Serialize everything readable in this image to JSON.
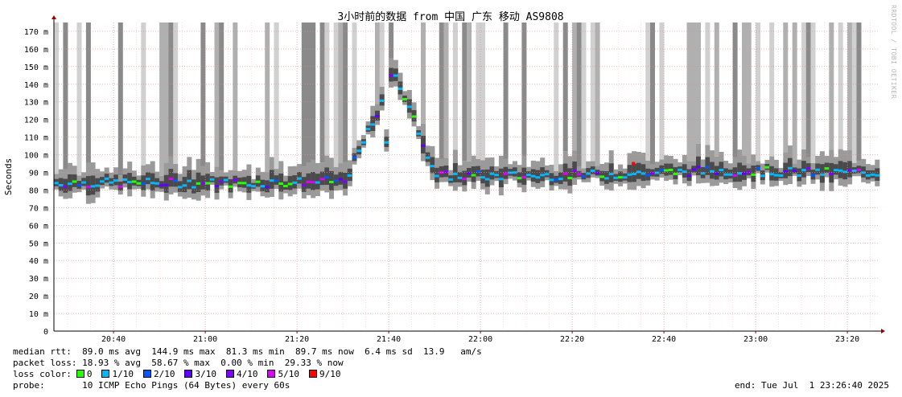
{
  "watermark": "RRDTOOL / TOBI OETIKER",
  "chart_data": {
    "type": "area",
    "title": "3小时前的数据 from 中国 广东 移动 AS9808",
    "ylabel": "Seconds",
    "xlabel": "",
    "ylim": [
      0,
      0.175
    ],
    "yticks": [
      {
        "v": 0,
        "label": "0"
      },
      {
        "v": 0.01,
        "label": "10 m"
      },
      {
        "v": 0.02,
        "label": "20 m"
      },
      {
        "v": 0.03,
        "label": "30 m"
      },
      {
        "v": 0.04,
        "label": "40 m"
      },
      {
        "v": 0.05,
        "label": "50 m"
      },
      {
        "v": 0.06,
        "label": "60 m"
      },
      {
        "v": 0.07,
        "label": "70 m"
      },
      {
        "v": 0.08,
        "label": "80 m"
      },
      {
        "v": 0.09,
        "label": "90 m"
      },
      {
        "v": 0.1,
        "label": "100 m"
      },
      {
        "v": 0.11,
        "label": "110 m"
      },
      {
        "v": 0.12,
        "label": "120 m"
      },
      {
        "v": 0.13,
        "label": "130 m"
      },
      {
        "v": 0.14,
        "label": "140 m"
      },
      {
        "v": 0.15,
        "label": "150 m"
      },
      {
        "v": 0.16,
        "label": "160 m"
      },
      {
        "v": 0.17,
        "label": "170 m"
      }
    ],
    "xticks": [
      "20:40",
      "21:00",
      "21:20",
      "21:40",
      "22:00",
      "22:20",
      "22:40",
      "23:00",
      "23:20"
    ],
    "grid": true,
    "series": [
      {
        "name": "median rtt",
        "unit": "ms",
        "x": [
          "20:27",
          "20:50",
          "21:10",
          "21:30",
          "21:41",
          "21:50",
          "22:10",
          "22:30",
          "22:50",
          "23:10",
          "23:26"
        ],
        "values": [
          84,
          84,
          84,
          85,
          145,
          88,
          88,
          89,
          91,
          90,
          90
        ]
      }
    ]
  },
  "stats": {
    "median_label": "median rtt:",
    "median_values": "89.0 ms avg  144.9 ms max  81.3 ms min  89.7 ms now  6.4 ms sd  13.9   am/s",
    "loss_label": "packet loss:",
    "loss_values": "18.93 % avg  58.67 % max  0.00 % min  29.33 % now",
    "color_label": "loss color:",
    "probe_label": "probe:",
    "probe_value": "10 ICMP Echo Pings (64 Bytes) every 60s",
    "end_text": "end: Tue Jul  1 23:26:40 2025"
  },
  "loss_legend": [
    {
      "label": "0",
      "color": "#26ff00"
    },
    {
      "label": "1/10",
      "color": "#00b8ff"
    },
    {
      "label": "2/10",
      "color": "#0059ff"
    },
    {
      "label": "3/10",
      "color": "#5e00ff"
    },
    {
      "label": "4/10",
      "color": "#7e00ff"
    },
    {
      "label": "5/10",
      "color": "#dd00ff"
    },
    {
      "label": "9/10",
      "color": "#ff0000"
    }
  ]
}
